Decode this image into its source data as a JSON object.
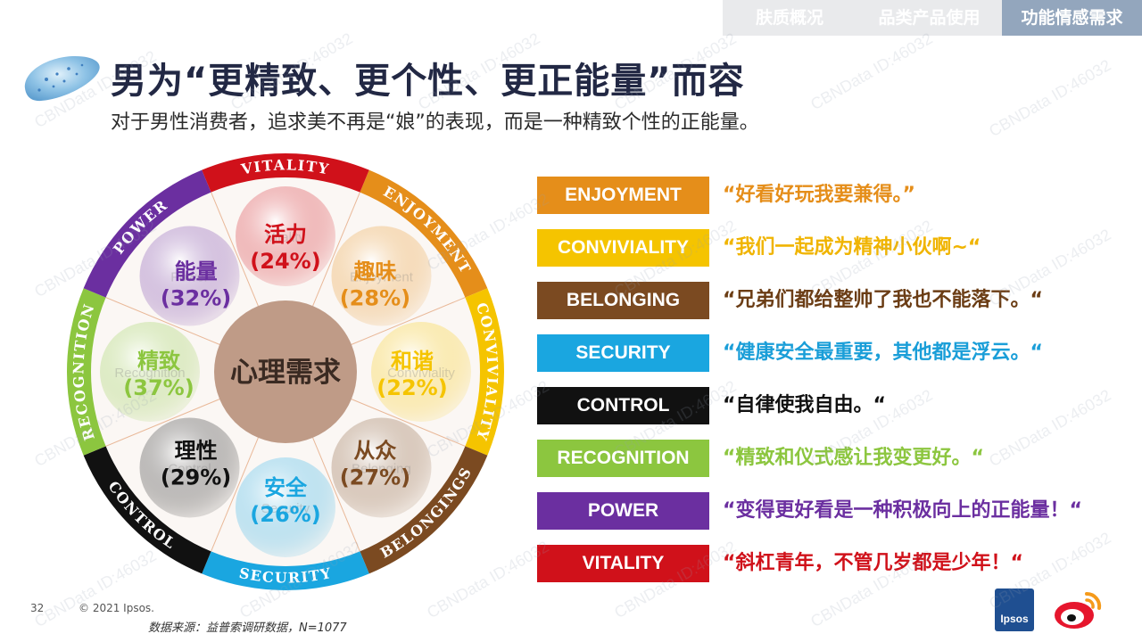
{
  "nav": {
    "tabs": [
      {
        "label": "肤质概况",
        "active": false
      },
      {
        "label": "品类产品使用",
        "active": false
      },
      {
        "label": "功能情感需求",
        "active": true
      }
    ]
  },
  "title": "男为“更精致、更个性、更正能量”而容",
  "subtitle": "对于男性消费者，追求美不再是“娘”的表现，而是一种精致个性的正能量。",
  "wheel": {
    "center_label": "心理需求",
    "segments": [
      {
        "ring_label": "ENJOYMENT",
        "name": "趣味",
        "pct": "(28%)",
        "value": 28,
        "color": "#e58e1a",
        "ghost": "Enjoyment"
      },
      {
        "ring_label": "CONVIVIALITY",
        "name": "和谐",
        "pct": "(22%)",
        "value": 22,
        "color": "#f5c400",
        "ghost": "Conviviality"
      },
      {
        "ring_label": "BELONGINGS",
        "name": "从众",
        "pct": "(27%)",
        "value": 27,
        "color": "#7b4a21",
        "ghost": "Belonging"
      },
      {
        "ring_label": "SECURITY",
        "name": "安全",
        "pct": "(26%)",
        "value": 26,
        "color": "#1aa6e0",
        "ghost": "Security"
      },
      {
        "ring_label": "CONTROL",
        "name": "理性",
        "pct": "(29%)",
        "value": 29,
        "color": "#111111",
        "ghost": "Control"
      },
      {
        "ring_label": "RECOGNITION",
        "name": "精致",
        "pct": "(37%)",
        "value": 37,
        "color": "#8cc63f",
        "ghost": "Recognition"
      },
      {
        "ring_label": "POWER",
        "name": "能量",
        "pct": "(32%)",
        "value": 32,
        "color": "#6b2fa0",
        "ghost": "Power"
      },
      {
        "ring_label": "VITALITY",
        "name": "活力",
        "pct": "(24%)",
        "value": 24,
        "color": "#d0111a",
        "ghost": "Vitality"
      }
    ]
  },
  "legend": [
    {
      "label": "ENJOYMENT",
      "quote": "“好看好玩我要兼得。”",
      "bg": "#e58e1a",
      "text_color": "#e58e1a"
    },
    {
      "label": "CONVIVIALITY",
      "quote": "“我们一起成为精神小伙啊~“",
      "bg": "#f5c400",
      "text_color": "#f0b400"
    },
    {
      "label": "BELONGING",
      "quote": "“兄弟们都给整帅了我也不能落下。“",
      "bg": "#7b4a21",
      "text_color": "#6b3d15"
    },
    {
      "label": "SECURITY",
      "quote": "“健康安全最重要，其他都是浮云。“",
      "bg": "#1aa6e0",
      "text_color": "#1a9ed8"
    },
    {
      "label": "CONTROL",
      "quote": "“自律使我自由。“",
      "bg": "#111111",
      "text_color": "#111111"
    },
    {
      "label": "RECOGNITION",
      "quote": "“精致和仪式感让我变更好。“",
      "bg": "#8cc63f",
      "text_color": "#8cc63f"
    },
    {
      "label": "POWER",
      "quote": "“变得更好看是一种积极向上的正能量！“",
      "bg": "#6b2fa0",
      "text_color": "#6b2fa0"
    },
    {
      "label": "VITALITY",
      "quote": "“斜杠青年，不管几岁都是少年！“",
      "bg": "#d0111a",
      "text_color": "#d0111a"
    }
  ],
  "footer": {
    "page_number": "32",
    "copyright": "© 2021 Ipsos.",
    "source": "数据来源：益普索调研数据，N=1077"
  },
  "logos": {
    "ipsos": "Ipsos",
    "weibo_icon": "weibo-icon"
  },
  "watermark": "CBNData ID:46032"
}
